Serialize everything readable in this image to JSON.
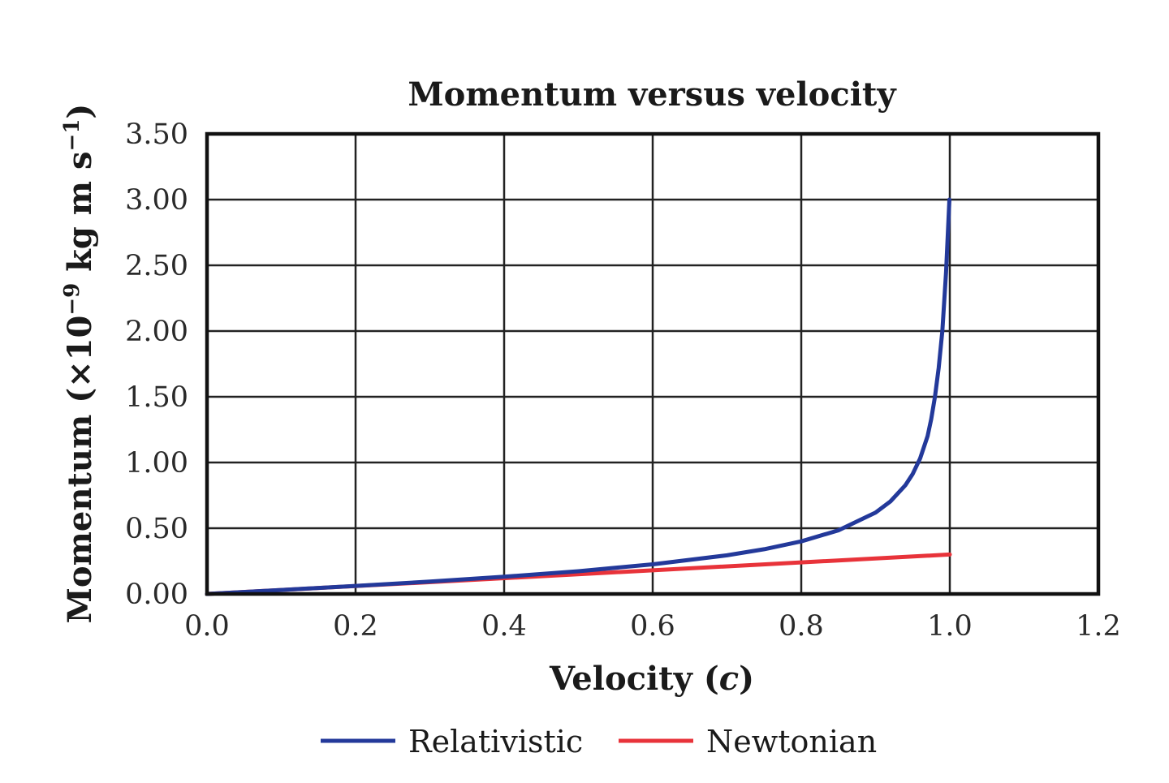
{
  "chart_data": {
    "type": "line",
    "title": "Momentum versus velocity",
    "xlabel_main": "Velocity (",
    "xlabel_var": "c",
    "xlabel_end": ")",
    "ylabel_main": "Momentum (×10",
    "ylabel_exp1": "−9",
    "ylabel_mid": " kg m s",
    "ylabel_exp2": "−1",
    "ylabel_end": ")",
    "xlim": [
      0.0,
      1.2
    ],
    "ylim": [
      0.0,
      3.5
    ],
    "xticks": [
      "0.0",
      "0.2",
      "0.4",
      "0.6",
      "0.8",
      "1.0",
      "1.2"
    ],
    "yticks": [
      "0.00",
      "0.50",
      "1.00",
      "1.50",
      "2.00",
      "2.50",
      "3.00",
      "3.50"
    ],
    "grid": true,
    "legend_position": "bottom",
    "series": [
      {
        "name": "Relativistic",
        "color": "#23399a",
        "x": [
          0.0,
          0.1,
          0.2,
          0.3,
          0.4,
          0.5,
          0.6,
          0.7,
          0.75,
          0.8,
          0.85,
          0.9,
          0.92,
          0.94,
          0.95,
          0.96,
          0.97,
          0.975,
          0.98,
          0.985,
          0.99,
          0.995,
          0.9995
        ],
        "y": [
          0.0,
          0.03,
          0.061,
          0.094,
          0.131,
          0.173,
          0.225,
          0.294,
          0.34,
          0.4,
          0.484,
          0.619,
          0.704,
          0.826,
          0.913,
          1.03,
          1.2,
          1.33,
          1.5,
          1.72,
          2.0,
          2.45,
          3.0
        ]
      },
      {
        "name": "Newtonian",
        "color": "#e8333a",
        "x": [
          0.0,
          1.0
        ],
        "y": [
          0.0,
          0.3
        ]
      }
    ]
  }
}
